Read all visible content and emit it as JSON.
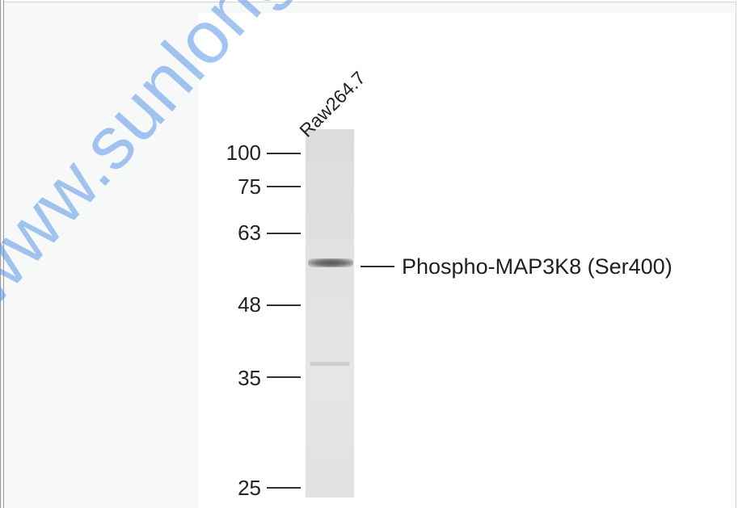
{
  "lane": {
    "label": "Raw264.7"
  },
  "markers": [
    {
      "value": "100"
    },
    {
      "value": "75"
    },
    {
      "value": "63"
    },
    {
      "value": "48"
    },
    {
      "value": "35"
    },
    {
      "value": "25"
    }
  ],
  "band": {
    "label": "Phospho-MAP3K8 (Ser400)"
  },
  "watermark": {
    "text": "www.sunlongbio.com"
  },
  "colors": {
    "watermark": "#5a96e6",
    "ink": "#222222",
    "lane": "#e0e0e0"
  }
}
